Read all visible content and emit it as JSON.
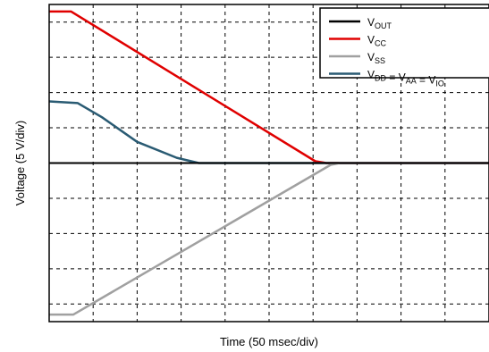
{
  "chart_data": {
    "type": "line",
    "title": "",
    "xlabel": "Time (50 msec/div)",
    "ylabel": "Voltage (5 V/div)",
    "x_units": "div",
    "y_units": "div",
    "xlim": [
      0,
      10
    ],
    "ylim": [
      -4.5,
      4.5
    ],
    "grid": true,
    "grid_style": "dashed",
    "legend_position": "top-right",
    "series": [
      {
        "name": "V_OUT",
        "legend_main": "V",
        "legend_sub": "OUT",
        "color": "#000000",
        "points": [
          [
            0,
            0
          ],
          [
            10,
            0
          ]
        ]
      },
      {
        "name": "V_CC",
        "legend_main": "V",
        "legend_sub": "CC",
        "color": "#e00000",
        "points": [
          [
            0,
            4.3
          ],
          [
            0.5,
            4.3
          ],
          [
            6.05,
            0.05
          ],
          [
            6.3,
            0
          ],
          [
            10,
            0
          ]
        ]
      },
      {
        "name": "V_SS",
        "legend_main": "V",
        "legend_sub": "SS",
        "color": "#a0a0a0",
        "points": [
          [
            0,
            -4.3
          ],
          [
            0.55,
            -4.3
          ],
          [
            6.4,
            -0.05
          ],
          [
            6.6,
            0
          ],
          [
            10,
            0
          ]
        ]
      },
      {
        "name": "V_DD = V_AA = V_IO",
        "legend_parts": [
          {
            "t": "V",
            "s": "DD"
          },
          {
            "t": " = V",
            "s": "AA"
          },
          {
            "t": " = V",
            "s": "IO"
          }
        ],
        "color": "#2a5b73",
        "points": [
          [
            0,
            1.75
          ],
          [
            0.65,
            1.7
          ],
          [
            1.2,
            1.3
          ],
          [
            2.0,
            0.6
          ],
          [
            2.9,
            0.15
          ],
          [
            3.4,
            0.0
          ],
          [
            10,
            0
          ]
        ]
      }
    ]
  }
}
